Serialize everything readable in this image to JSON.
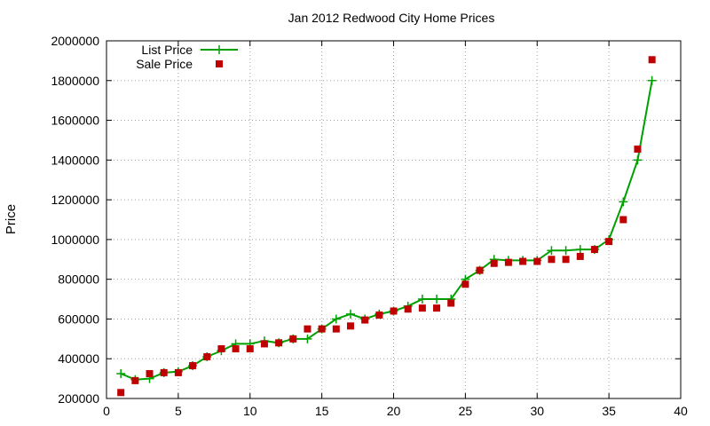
{
  "chart_data": {
    "type": "line",
    "title": "Jan 2012 Redwood City Home Prices",
    "xlabel": "",
    "ylabel": "Price",
    "xlim": [
      0,
      40
    ],
    "ylim": [
      200000,
      2000000
    ],
    "xticks": [
      0,
      5,
      10,
      15,
      20,
      25,
      30,
      35,
      40
    ],
    "yticks": [
      200000,
      400000,
      600000,
      800000,
      1000000,
      1200000,
      1400000,
      1600000,
      1800000,
      2000000
    ],
    "grid": true,
    "legend_position": "top-left",
    "series": [
      {
        "name": "List Price",
        "style": "line-with-plus-markers",
        "color": "#00a000",
        "x": [
          1,
          2,
          3,
          4,
          5,
          6,
          7,
          8,
          9,
          10,
          11,
          12,
          13,
          14,
          15,
          16,
          17,
          18,
          19,
          20,
          21,
          22,
          23,
          24,
          25,
          26,
          27,
          28,
          29,
          30,
          31,
          32,
          33,
          34,
          35,
          36,
          37,
          38
        ],
        "y": [
          325000,
          295000,
          300000,
          330000,
          335000,
          365000,
          410000,
          440000,
          475000,
          475000,
          490000,
          480000,
          500000,
          500000,
          550000,
          600000,
          625000,
          600000,
          625000,
          640000,
          665000,
          700000,
          700000,
          700000,
          800000,
          845000,
          900000,
          895000,
          895000,
          895000,
          945000,
          945000,
          950000,
          950000,
          1000000,
          1190000,
          1400000,
          1800000
        ]
      },
      {
        "name": "Sale Price",
        "style": "square-markers",
        "color": "#c00000",
        "x": [
          1,
          2,
          3,
          4,
          5,
          6,
          7,
          8,
          9,
          10,
          11,
          12,
          13,
          14,
          15,
          16,
          17,
          18,
          19,
          20,
          21,
          22,
          23,
          24,
          25,
          26,
          27,
          28,
          29,
          30,
          31,
          32,
          33,
          34,
          35,
          36,
          37,
          38
        ],
        "y": [
          230000,
          290000,
          325000,
          330000,
          330000,
          365000,
          410000,
          450000,
          450000,
          450000,
          475000,
          480000,
          500000,
          550000,
          550000,
          550000,
          565000,
          595000,
          620000,
          640000,
          650000,
          655000,
          655000,
          680000,
          775000,
          845000,
          880000,
          885000,
          890000,
          890000,
          900000,
          900000,
          915000,
          950000,
          990000,
          1100000,
          1455000,
          1905000
        ]
      }
    ]
  }
}
